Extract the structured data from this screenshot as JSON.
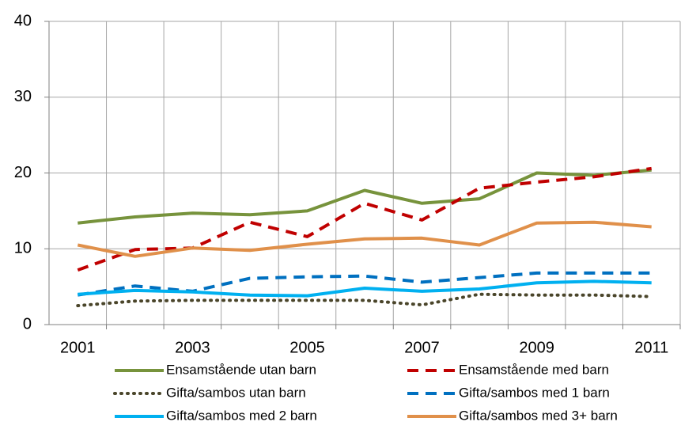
{
  "chart_data": {
    "type": "line",
    "categories": [
      "2001",
      null,
      "2003",
      null,
      "2005",
      null,
      "2007",
      null,
      "2009",
      null,
      "2011"
    ],
    "ylim": [
      0,
      40
    ],
    "yticks": [
      0,
      10,
      20,
      30,
      40
    ],
    "grid": true,
    "series": [
      {
        "name": "Ensamstående utan barn",
        "color": "#77933c",
        "style": "solid",
        "values": [
          13.4,
          14.2,
          14.7,
          14.5,
          15.0,
          17.7,
          16.0,
          16.6,
          20.0,
          19.7,
          20.4
        ]
      },
      {
        "name": "Ensamstående med barn",
        "color": "#c00000",
        "style": "dashed",
        "values": [
          7.2,
          9.9,
          10.1,
          13.5,
          11.6,
          16.0,
          13.8,
          18.0,
          18.8,
          19.5,
          20.6
        ]
      },
      {
        "name": "Gifta/sambos utan barn",
        "color": "#4a452a",
        "style": "dotted",
        "values": [
          2.5,
          3.1,
          3.2,
          3.2,
          3.2,
          3.2,
          2.6,
          4.0,
          3.9,
          3.9,
          3.7
        ]
      },
      {
        "name": "Gifta/sambos med 1 barn",
        "color": "#0070c0",
        "style": "dashed",
        "values": [
          3.9,
          5.1,
          4.4,
          6.1,
          6.3,
          6.4,
          5.6,
          6.2,
          6.8,
          6.8,
          6.8
        ]
      },
      {
        "name": "Gifta/sambos med 2 barn",
        "color": "#00b0f0",
        "style": "solid",
        "values": [
          4.0,
          4.5,
          4.3,
          3.9,
          3.8,
          4.8,
          4.4,
          4.7,
          5.5,
          5.7,
          5.5
        ]
      },
      {
        "name": "Gifta/sambos med 3+ barn",
        "color": "#e0904a",
        "style": "solid",
        "values": [
          10.5,
          9.0,
          10.1,
          9.8,
          10.6,
          11.3,
          11.4,
          10.5,
          13.4,
          13.5,
          12.9
        ]
      }
    ]
  }
}
